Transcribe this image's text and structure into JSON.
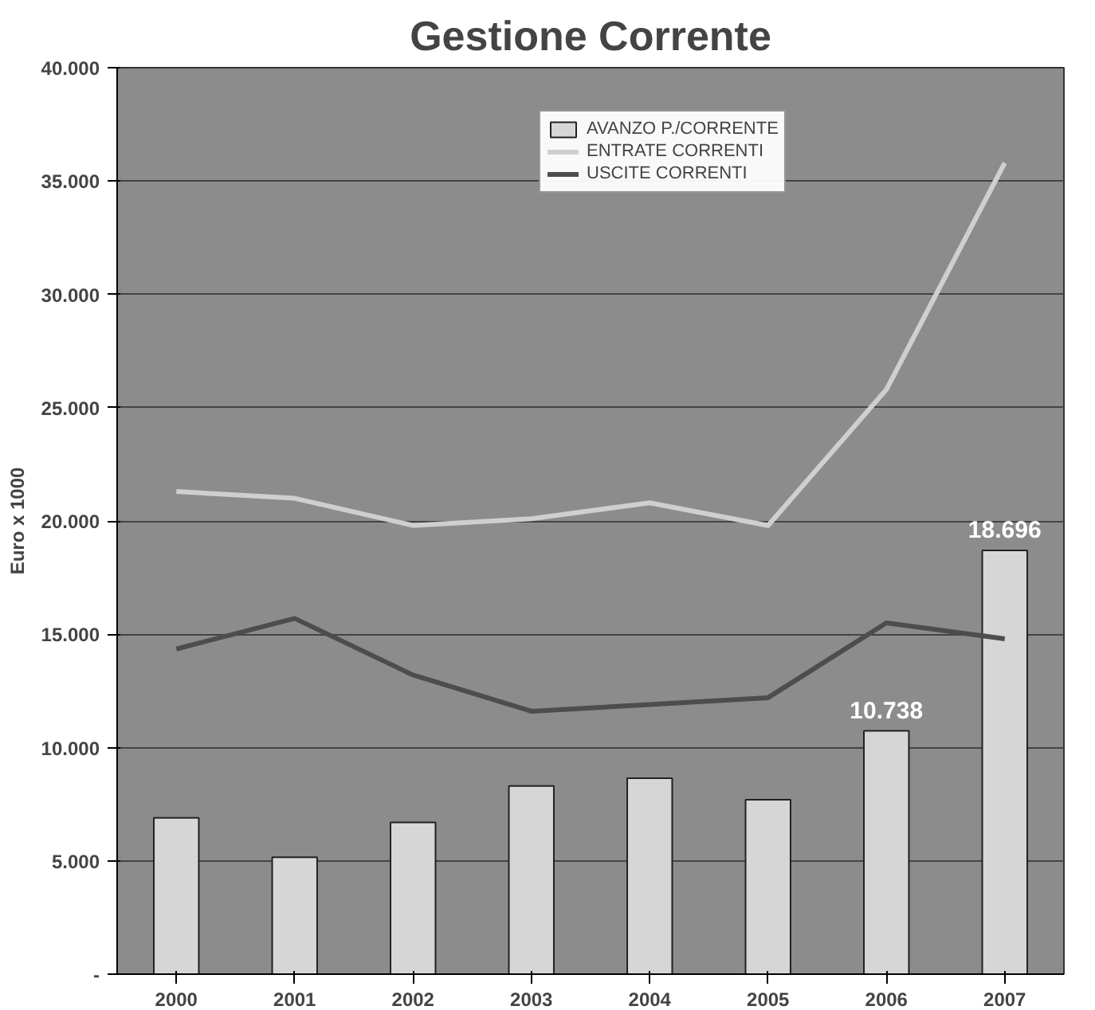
{
  "chart_data": {
    "type": "bar",
    "title": "Gestione Corrente",
    "ylabel": "Euro x 1000",
    "categories": [
      "2000",
      "2001",
      "2002",
      "2003",
      "2004",
      "2005",
      "2006",
      "2007"
    ],
    "series": [
      {
        "name": "AVANZO P./CORRENTE",
        "color": "#d6d6d6",
        "values": [
          6900,
          5160,
          6700,
          8300,
          8650,
          7700,
          10738,
          18696
        ],
        "value_labels": [
          null,
          null,
          null,
          null,
          null,
          null,
          "10.738",
          "18.696"
        ]
      },
      {
        "name": "ENTRATE CORRENTI",
        "type": "line",
        "color": "#cfcfcf",
        "values": [
          21300,
          21000,
          19800,
          20100,
          20800,
          19800,
          25800,
          35800
        ]
      },
      {
        "name": "USCITE CORRENTI",
        "type": "line",
        "color": "#4d4d4d",
        "values": [
          14350,
          15700,
          13200,
          11600,
          11900,
          12200,
          15500,
          14800
        ]
      }
    ],
    "ylim": [
      0,
      40000
    ],
    "yticks": [
      {
        "value": 0,
        "label": "-"
      },
      {
        "value": 5000,
        "label": "5.000"
      },
      {
        "value": 10000,
        "label": "10.000"
      },
      {
        "value": 15000,
        "label": "15.000"
      },
      {
        "value": 20000,
        "label": "20.000"
      },
      {
        "value": 25000,
        "label": "25.000"
      },
      {
        "value": 30000,
        "label": "30.000"
      },
      {
        "value": 35000,
        "label": "35.000"
      },
      {
        "value": 40000,
        "label": "40.000"
      }
    ],
    "grid": "y",
    "legend": "top right"
  }
}
